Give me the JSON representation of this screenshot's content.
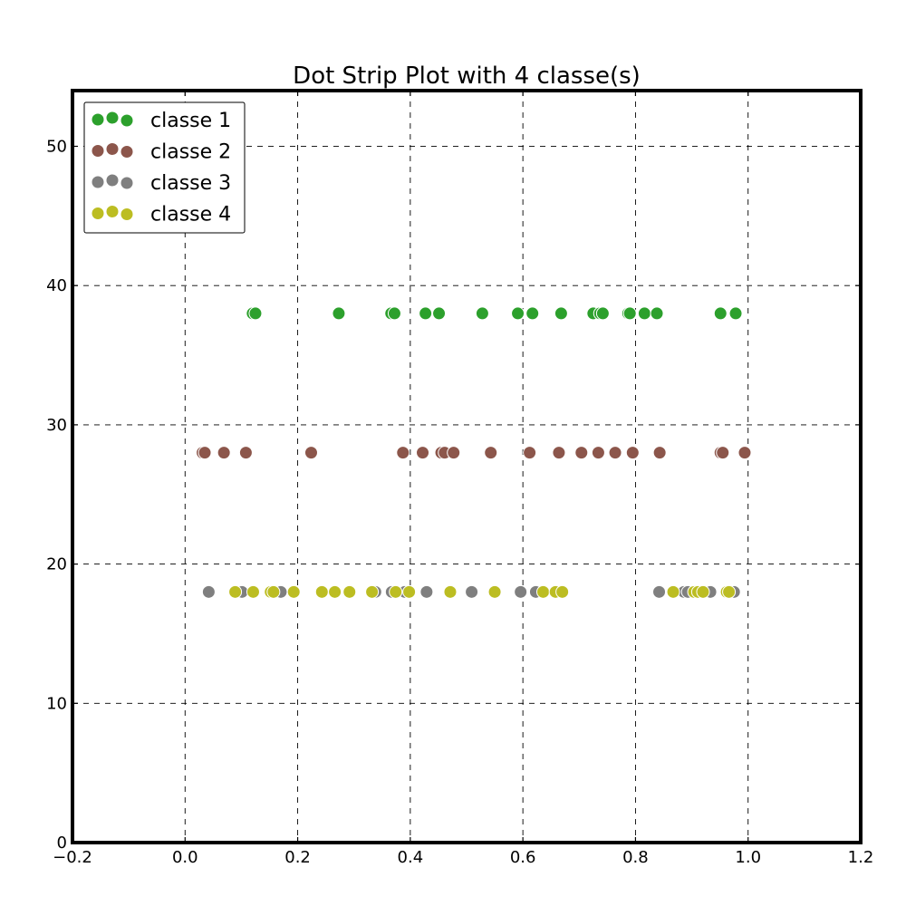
{
  "chart_data": {
    "type": "scatter",
    "title": "Dot Strip Plot with 4 classe(s)",
    "xlabel": "",
    "ylabel": "",
    "xlim": [
      -0.2,
      1.2
    ],
    "ylim": [
      0,
      54
    ],
    "x_ticks": [
      -0.2,
      0.0,
      0.2,
      0.4,
      0.6,
      0.8,
      1.0,
      1.2
    ],
    "x_tick_labels": [
      "−0.2",
      "0.0",
      "0.2",
      "0.4",
      "0.6",
      "0.8",
      "1.0",
      "1.2"
    ],
    "y_ticks": [
      0,
      10,
      20,
      30,
      40,
      50
    ],
    "y_tick_labels": [
      "0",
      "10",
      "20",
      "30",
      "40",
      "50"
    ],
    "grid": true,
    "legend_position": "top-left",
    "series": [
      {
        "name": "classe 1",
        "color": "#2ca02c",
        "y": 38,
        "x": [
          0.12,
          0.125,
          0.273,
          0.366,
          0.372,
          0.427,
          0.451,
          0.528,
          0.591,
          0.617,
          0.668,
          0.725,
          0.737,
          0.742,
          0.787,
          0.79,
          0.816,
          0.838,
          0.951,
          0.978
        ]
      },
      {
        "name": "classe 2",
        "color": "#8c564b",
        "y": 28,
        "x": [
          0.031,
          0.035,
          0.069,
          0.108,
          0.224,
          0.387,
          0.422,
          0.455,
          0.461,
          0.477,
          0.543,
          0.612,
          0.664,
          0.704,
          0.734,
          0.764,
          0.795,
          0.843,
          0.951,
          0.955,
          0.994
        ]
      },
      {
        "name": "classe 3",
        "color": "#7f7f7f",
        "y": 18,
        "x": [
          0.042,
          0.101,
          0.165,
          0.17,
          0.338,
          0.367,
          0.39,
          0.429,
          0.509,
          0.596,
          0.623,
          0.842,
          0.886,
          0.893,
          0.905,
          0.933,
          0.975
        ]
      },
      {
        "name": "classe 4",
        "color": "#bcbd22",
        "y": 18,
        "x": [
          0.089,
          0.121,
          0.152,
          0.157,
          0.193,
          0.243,
          0.266,
          0.292,
          0.332,
          0.374,
          0.398,
          0.471,
          0.55,
          0.636,
          0.658,
          0.67,
          0.867,
          0.904,
          0.911,
          0.92,
          0.962,
          0.966
        ]
      }
    ]
  }
}
